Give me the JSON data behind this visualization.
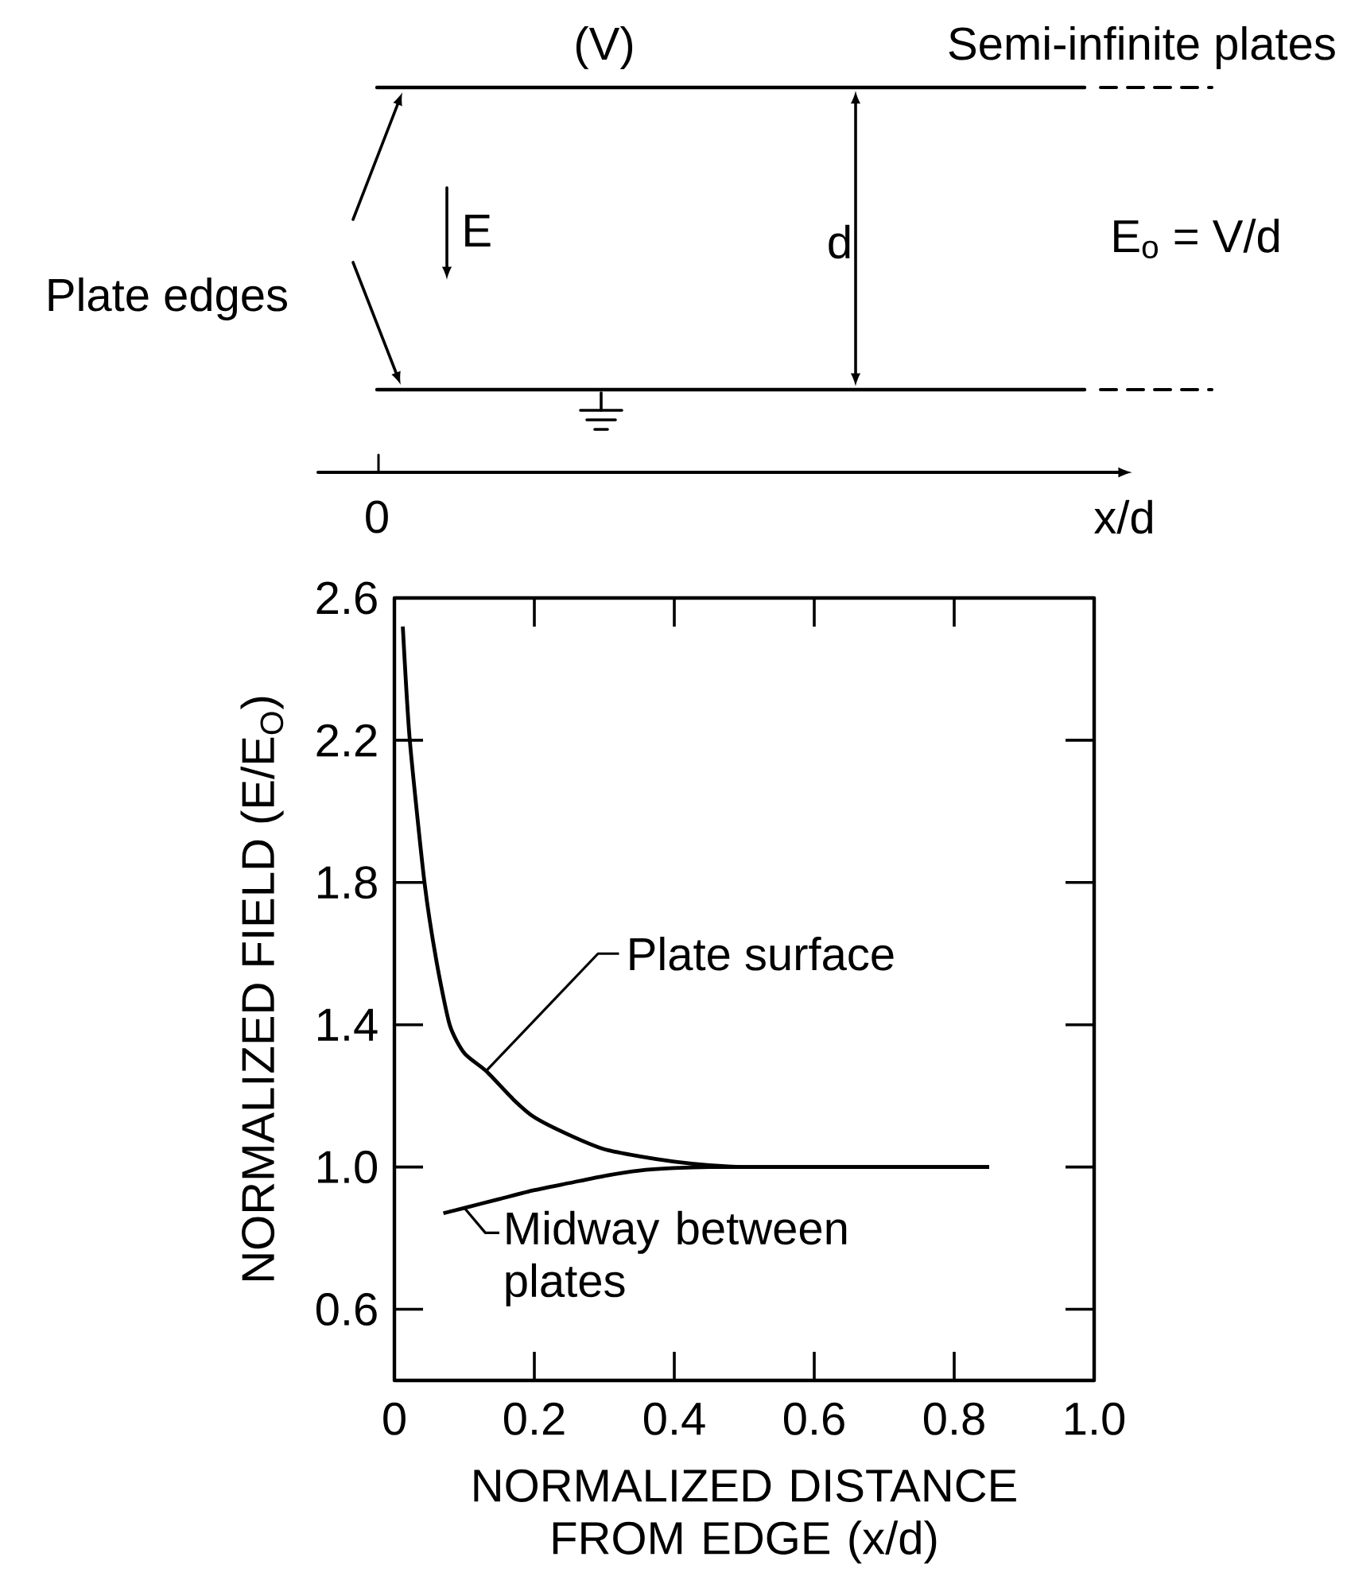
{
  "chart_data": {
    "type": "line",
    "xlabel": "NORMALIZED DISTANCE FROM EDGE (x/d)",
    "ylabel": "NORMALIZED FIELD (E/E$_{O}$)",
    "xlim": [
      0,
      1.0
    ],
    "ylim": [
      0.4,
      2.6
    ],
    "xticks": [
      0,
      {
        "value": 0.2,
        "label": "0.2"
      },
      {
        "value": 0.4,
        "label": "0.4"
      },
      {
        "value": 0.6,
        "label": "0.6"
      },
      {
        "value": 0.8,
        "label": "0.8"
      },
      {
        "value": 1.0,
        "label": "1.0"
      }
    ],
    "yticks": [
      {
        "value": 0.6,
        "label": "0.6"
      },
      {
        "value": 1.0,
        "label": "1.0"
      },
      {
        "value": 1.4,
        "label": "1.4"
      },
      {
        "value": 1.8,
        "label": "1.8"
      },
      {
        "value": 2.2,
        "label": "2.2"
      },
      {
        "value": 2.6,
        "label": "2.6"
      }
    ],
    "marker": "none",
    "line_style": "solid",
    "series": [
      {
        "color": "#000000",
        "x": [
          0.012,
          0.022,
          0.043,
          0.06,
          0.079,
          0.1,
          0.131,
          0.17,
          0.2,
          0.25,
          0.3,
          0.35,
          0.4,
          0.45,
          0.5,
          0.6,
          0.7,
          0.85
        ],
        "values": [
          2.52,
          2.2,
          1.8,
          1.58,
          1.4,
          1.32,
          1.27,
          1.19,
          1.14,
          1.09,
          1.05,
          1.03,
          1.015,
          1.005,
          1.0,
          1.0,
          1.0,
          1.0
        ]
      },
      {
        "color": "#000000",
        "x": [
          0.07,
          0.1,
          0.15,
          0.2,
          0.25,
          0.3,
          0.35,
          0.4,
          0.45,
          0.6,
          0.85
        ],
        "values": [
          0.87,
          0.885,
          0.91,
          0.935,
          0.955,
          0.975,
          0.99,
          0.997,
          1.0,
          1.0,
          1.0
        ]
      }
    ],
    "annotations": [
      {
        "text": "Plate surface",
        "x": 0.131,
        "y": 1.27
      },
      {
        "text": "Midway between plates",
        "x": 0.1,
        "y": 0.885
      },
      "(V)",
      "Semi-infinite plates",
      "Plate edges",
      "E",
      "d",
      "E$_{o}$ = V/d",
      "0",
      "x/d"
    ]
  }
}
